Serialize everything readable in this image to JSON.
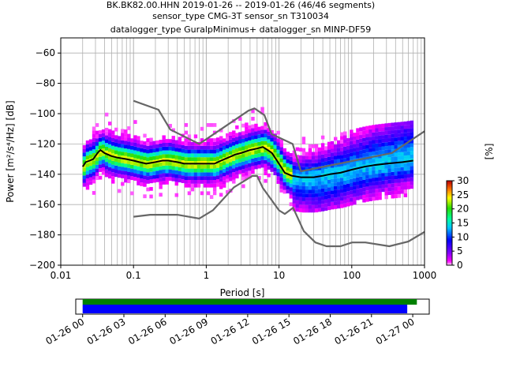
{
  "chart_data": {
    "type": "heatmap",
    "title_lines": [
      "BK.BK82.00.HHN   2019-01-26 -- 2019-01-26  (46/46 segments)",
      "sensor_type CMG-3T sensor_sn T310034",
      "datalogger_type GuralpMinimus+ datalogger_sn MINP-DF59"
    ],
    "xlabel": "Period [s]",
    "ylabel": "Power [m²/s⁴/Hz] [dB]",
    "x_scale": "log",
    "xlim": [
      0.01,
      1000
    ],
    "ylim": [
      -200,
      -50
    ],
    "x_ticks": [
      {
        "value": 0.01,
        "label": "0.01"
      },
      {
        "value": 0.1,
        "label": "0.1"
      },
      {
        "value": 1,
        "label": "1"
      },
      {
        "value": 10,
        "label": "10"
      },
      {
        "value": 100,
        "label": "100"
      },
      {
        "value": 1000,
        "label": "1000"
      }
    ],
    "y_ticks": [
      {
        "value": -60,
        "label": "−60"
      },
      {
        "value": -80,
        "label": "−80"
      },
      {
        "value": -100,
        "label": "−100"
      },
      {
        "value": -120,
        "label": "−120"
      },
      {
        "value": -140,
        "label": "−140"
      },
      {
        "value": -160,
        "label": "−160"
      },
      {
        "value": -180,
        "label": "−180"
      },
      {
        "value": -200,
        "label": "−200"
      }
    ],
    "grid": true,
    "noise_model_upper": {
      "x": [
        0.1,
        0.22,
        0.32,
        0.8,
        3.8,
        4.6,
        6.3,
        7.9,
        15.4,
        20,
        354.8,
        1000
      ],
      "y": [
        -91.5,
        -97.4,
        -110.5,
        -120,
        -98,
        -96.5,
        -101,
        -113.5,
        -120,
        -138,
        -126,
        -111.6
      ]
    },
    "noise_model_lower": {
      "x": [
        0.1,
        0.17,
        0.4,
        0.8,
        1.24,
        2.4,
        4.3,
        5,
        6,
        10,
        12,
        15.6,
        21.9,
        31.6,
        45,
        70,
        101,
        154,
        328,
        600,
        1000
      ],
      "y": [
        -168,
        -166.7,
        -166.7,
        -169.2,
        -163.7,
        -148.6,
        -141.1,
        -141.1,
        -149,
        -163.8,
        -166.2,
        -162.1,
        -177.5,
        -185,
        -187.5,
        -187.5,
        -185,
        -185,
        -187.5,
        -184.4,
        -178
      ]
    },
    "mode_line": {
      "x": [
        0.02,
        0.022,
        0.025,
        0.028,
        0.032,
        0.035,
        0.04,
        0.05,
        0.06,
        0.08,
        0.1,
        0.12,
        0.15,
        0.2,
        0.25,
        0.3,
        0.4,
        0.5,
        0.7,
        1,
        1.3,
        1.6,
        2,
        2.5,
        3,
        4,
        5,
        6,
        7,
        8,
        10,
        12,
        15,
        20,
        25,
        30,
        40,
        50,
        70,
        100,
        150,
        200,
        300,
        500,
        700
      ],
      "y": [
        -135,
        -132,
        -131,
        -130,
        -126,
        -124,
        -126,
        -128,
        -129,
        -130,
        -131,
        -132,
        -133,
        -132,
        -131,
        -131,
        -132,
        -133,
        -133,
        -133,
        -133,
        -131,
        -129,
        -127,
        -126,
        -124,
        -123,
        -122,
        -124,
        -126,
        -133,
        -139,
        -141,
        -142,
        -142,
        -142,
        -141,
        -140,
        -139,
        -137,
        -135,
        -134,
        -133,
        -132,
        -131
      ]
    },
    "colorbar": {
      "label": "[%]",
      "min": 0,
      "max": 30,
      "ticks": [
        0,
        5,
        10,
        15,
        20,
        25,
        30
      ]
    },
    "coverage": {
      "x_tick_labels": [
        "01-26 00",
        "01-26 03",
        "01-26 06",
        "01-26 09",
        "01-26 12",
        "01-26 15",
        "01-26 18",
        "01-26 21",
        "01-27 00"
      ],
      "range_hours": [
        -0.5,
        25.2
      ],
      "data_bar": {
        "start_hours": 0,
        "end_hours": 24.3,
        "color": "#008000"
      },
      "psd_bar": {
        "start_hours": 0,
        "end_hours": 23.6,
        "color": "#0000ff"
      }
    }
  }
}
